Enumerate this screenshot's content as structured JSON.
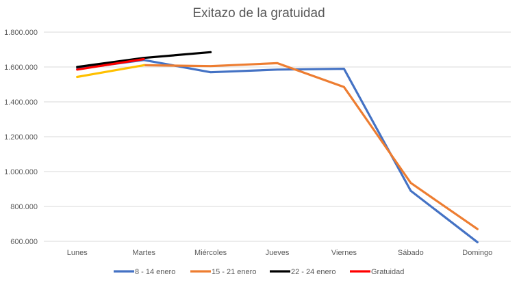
{
  "chart_data": {
    "type": "line",
    "title": "Exitazo de la gratuidad",
    "xlabel": "",
    "ylabel": "",
    "categories": [
      "Lunes",
      "Martes",
      "Miércoles",
      "Jueves",
      "Viernes",
      "Sábado",
      "Domingo"
    ],
    "ylim": [
      600000,
      1800000
    ],
    "yticks": [
      {
        "value": 600000,
        "label": "600.000"
      },
      {
        "value": 800000,
        "label": "800.000"
      },
      {
        "value": 1000000,
        "label": "1.000.000"
      },
      {
        "value": 1200000,
        "label": "1.200.000"
      },
      {
        "value": 1400000,
        "label": "1.400.000"
      },
      {
        "value": 1600000,
        "label": "1.600.000"
      },
      {
        "value": 1800000,
        "label": "1.800.000"
      }
    ],
    "grid": true,
    "legend_position": "bottom",
    "series": [
      {
        "name": "8 - 14 enero",
        "color": "#4472c4",
        "in_legend": true,
        "values": [
          1590000,
          1640000,
          1570000,
          1585000,
          1590000,
          890000,
          595000
        ]
      },
      {
        "name": "15 - 21 enero",
        "color": "#ed7d31",
        "in_legend": true,
        "values": [
          null,
          1610000,
          1605000,
          1622000,
          1485000,
          935000,
          670000
        ]
      },
      {
        "name": "",
        "color": "#ffc000",
        "in_legend": false,
        "values": [
          1543000,
          1610000,
          null,
          null,
          null,
          null,
          null
        ]
      },
      {
        "name": "22 - 24 enero",
        "color": "#000000",
        "in_legend": true,
        "values": [
          1600000,
          1652000,
          1685000,
          null,
          null,
          null,
          null
        ]
      },
      {
        "name": "Gratuidad",
        "color": "#ff0000",
        "in_legend": true,
        "values": [
          1585000,
          1645000,
          null,
          null,
          null,
          null,
          null
        ]
      }
    ]
  }
}
